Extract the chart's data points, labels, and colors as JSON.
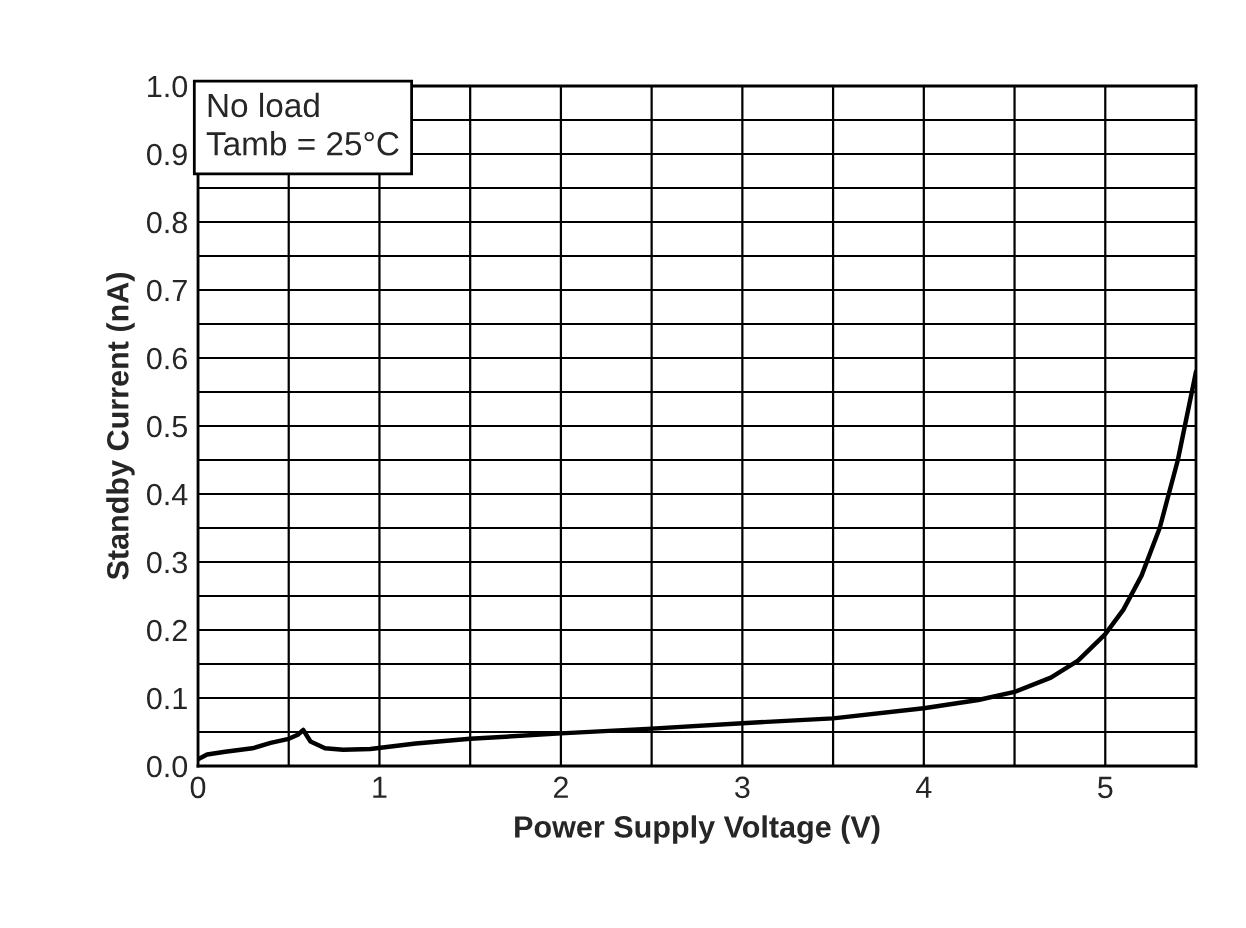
{
  "chart_data": {
    "type": "line",
    "xlabel": "Power Supply Voltage (V)",
    "ylabel": "Standby Current (nA)",
    "x": [
      0,
      0.05,
      0.15,
      0.3,
      0.4,
      0.5,
      0.55,
      0.58,
      0.62,
      0.7,
      0.8,
      0.95,
      1.2,
      1.5,
      2,
      2.5,
      3,
      3.5,
      4,
      4.3,
      4.5,
      4.7,
      4.85,
      5,
      5.1,
      5.2,
      5.3,
      5.4,
      5.5
    ],
    "series": [
      {
        "color": "#000000",
        "values": [
          0.01,
          0.017,
          0.021,
          0.026,
          0.034,
          0.04,
          0.046,
          0.053,
          0.036,
          0.026,
          0.024,
          0.025,
          0.033,
          0.04,
          0.048,
          0.055,
          0.063,
          0.07,
          0.085,
          0.097,
          0.109,
          0.13,
          0.155,
          0.194,
          0.23,
          0.28,
          0.35,
          0.45,
          0.58
        ]
      }
    ],
    "xlim": [
      0,
      5.5
    ],
    "ylim": [
      0,
      1.0
    ],
    "xticks": [
      0,
      {
        "value": 0.5,
        "label": null
      },
      1,
      {
        "value": 1.5,
        "label": null
      },
      2,
      {
        "value": 2.5,
        "label": null
      },
      3,
      {
        "value": 3.5,
        "label": null
      },
      4,
      {
        "value": 4.5,
        "label": null
      },
      5
    ],
    "yticks": [
      {
        "value": 0,
        "label": "0.0"
      },
      {
        "value": 0.05,
        "label": null
      },
      0.1,
      {
        "value": 0.15,
        "label": null
      },
      0.2,
      {
        "value": 0.25,
        "label": null
      },
      0.3,
      {
        "value": 0.35,
        "label": null
      },
      0.4,
      {
        "value": 0.45,
        "label": null
      },
      0.5,
      {
        "value": 0.55,
        "label": null
      },
      0.6,
      {
        "value": 0.65,
        "label": null
      },
      0.7,
      {
        "value": 0.75,
        "label": null
      },
      0.8,
      {
        "value": 0.85,
        "label": null
      },
      0.9,
      {
        "value": 0.95,
        "label": null
      },
      {
        "value": 1.0,
        "label": "1.0"
      }
    ],
    "grid": true,
    "annotations": [
      "No load\nTamb = 25°C"
    ]
  }
}
